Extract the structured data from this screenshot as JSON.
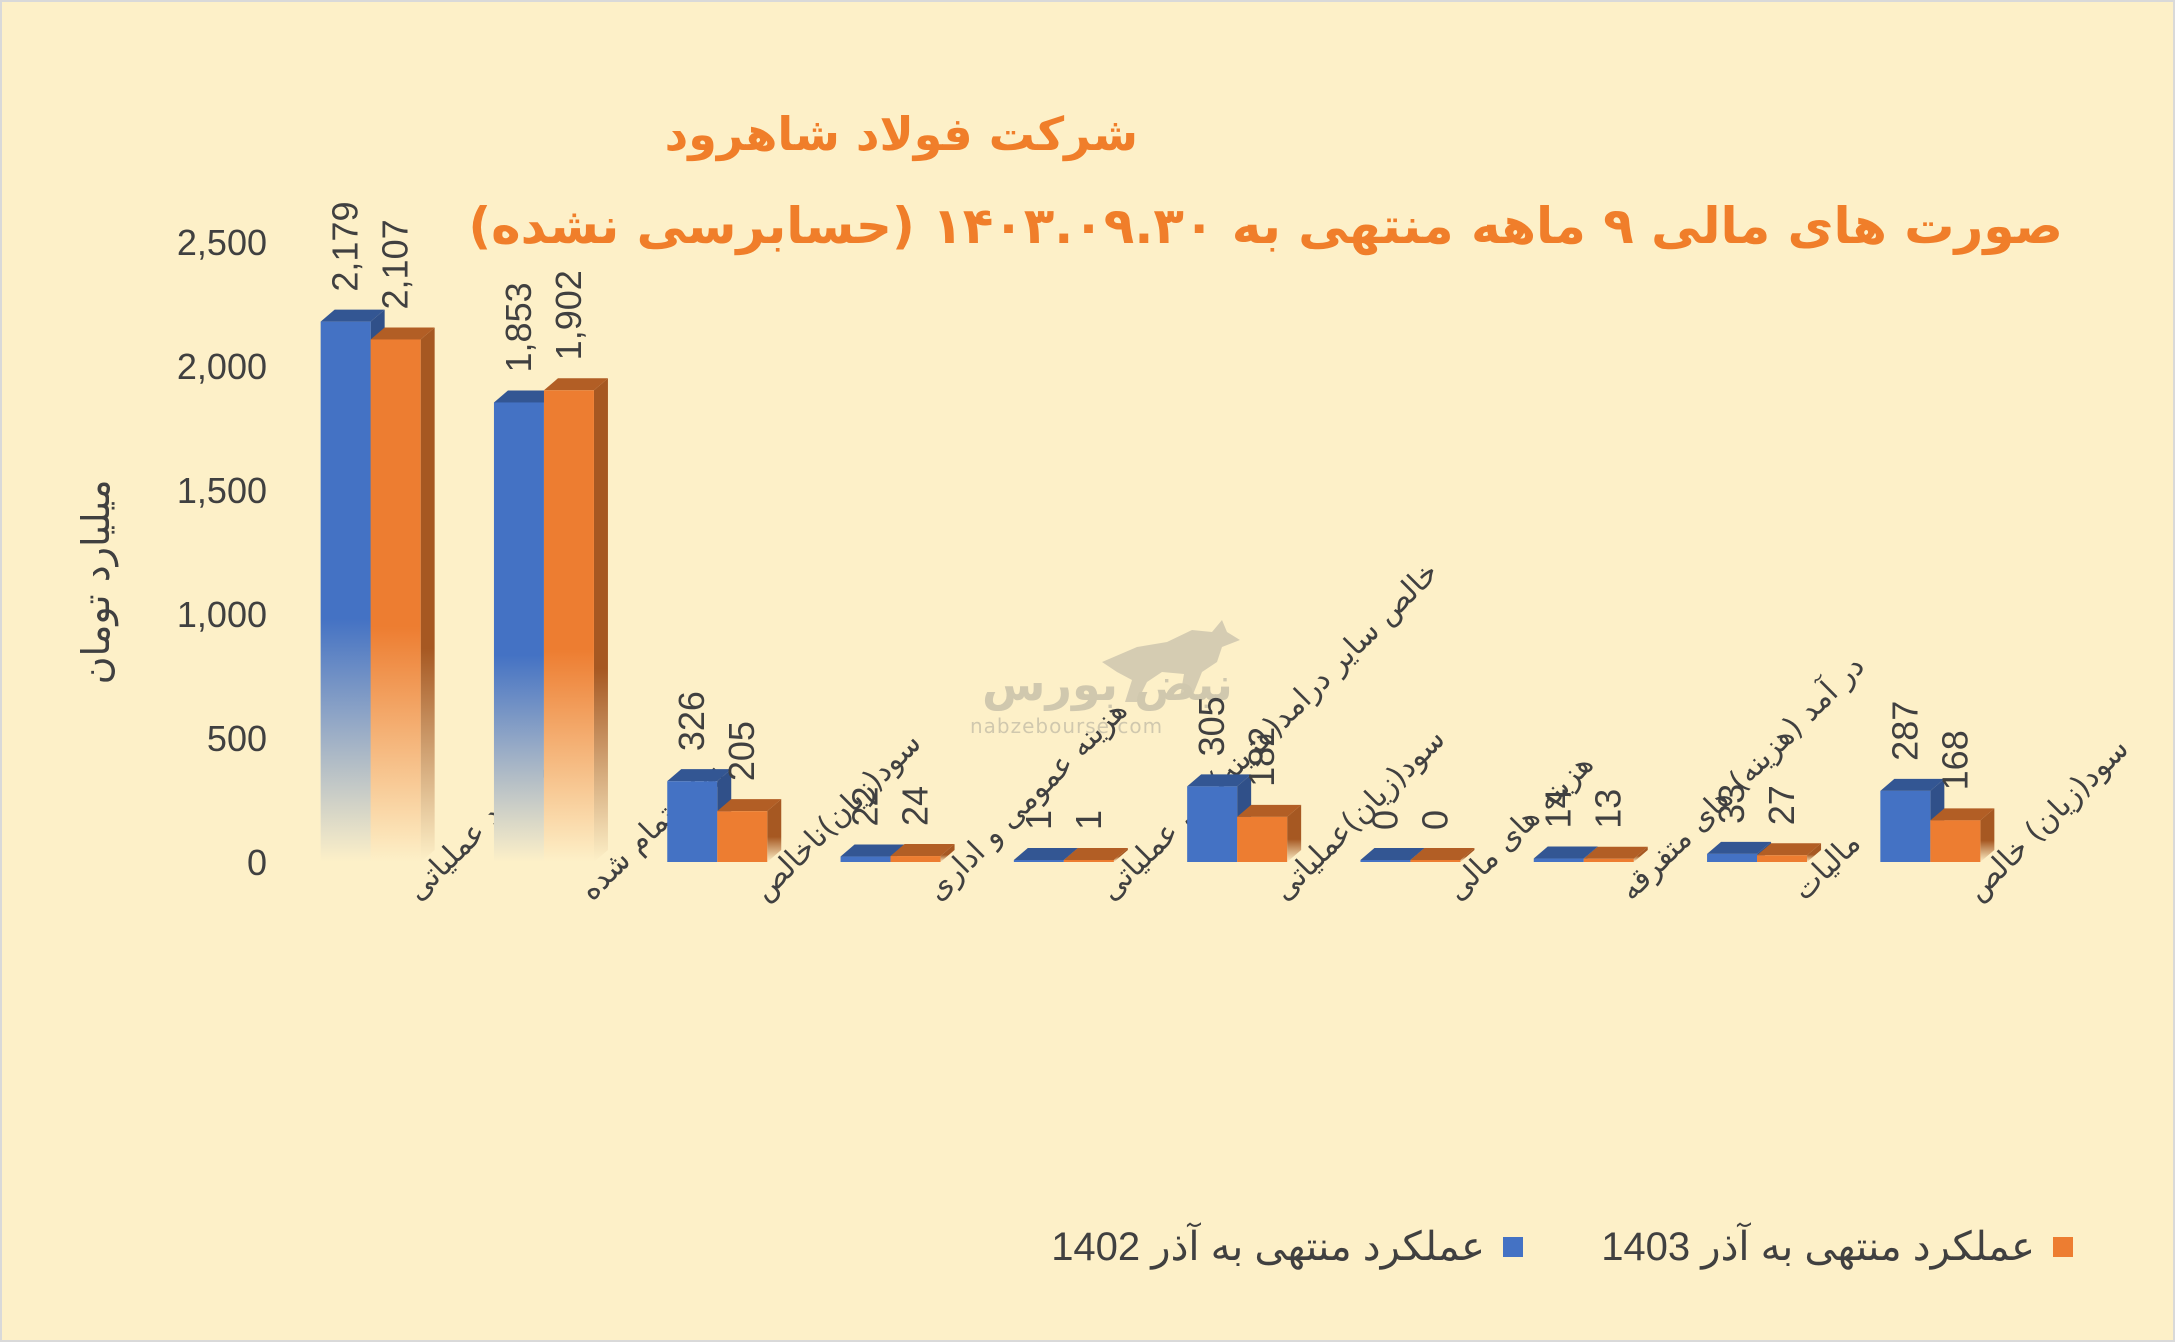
{
  "header": {
    "title": "شرکت فولاد شاهرود",
    "subtitle": "صورت های مالی ۹ ماهه منتهی به ۱۴۰۳.۰۹.۳۰ (حسابرسی نشده)"
  },
  "watermark": {
    "brand": "نبض بورس",
    "url": "nabzebourse.com",
    "icon": "bull-icon"
  },
  "colors": {
    "background": "#fdf0c8",
    "title": "#f07e2a",
    "series_1402": "#4472c4",
    "series_1403": "#ed7d31"
  },
  "chart_data": {
    "type": "bar",
    "ylabel": "میلیارد تومان",
    "xlabel": "",
    "ylim": [
      0,
      2500
    ],
    "yticks": [
      0,
      500,
      1000,
      1500,
      2000,
      2500
    ],
    "ytick_labels": [
      "0",
      "500",
      "1,000",
      "1,500",
      "2,000",
      "2,500"
    ],
    "legend_position": "bottom-right",
    "grid": false,
    "categories": [
      "در آمد عملیاتی",
      "بهای تمام شده",
      "سود(زیان)ناخالص",
      "هزینه عمومی و اداری",
      "خالص سایر درامد(هزینه)های عملیاتی",
      "سود(زیان)عملیاتی",
      "هزینه های مالی",
      "در آمد (هزینه) های متفرقه",
      "مالیات",
      "سود(زیان) خالص"
    ],
    "series": [
      {
        "name": "عملکرد منتهی به آذر 1402",
        "color": "#4472c4",
        "values": [
          2179,
          1853,
          326,
          22,
          1,
          305,
          0,
          14,
          33,
          287
        ],
        "labels": [
          "2,179",
          "1,853",
          "326",
          "22",
          "1",
          "305",
          "0",
          "14",
          "33",
          "287"
        ]
      },
      {
        "name": "عملکرد منتهی به آذر 1403",
        "color": "#ed7d31",
        "values": [
          2107,
          1902,
          205,
          24,
          1,
          182,
          0,
          13,
          27,
          168
        ],
        "labels": [
          "2,107",
          "1,902",
          "205",
          "24",
          "1",
          "182",
          "0",
          "13",
          "27",
          "168"
        ]
      }
    ]
  }
}
